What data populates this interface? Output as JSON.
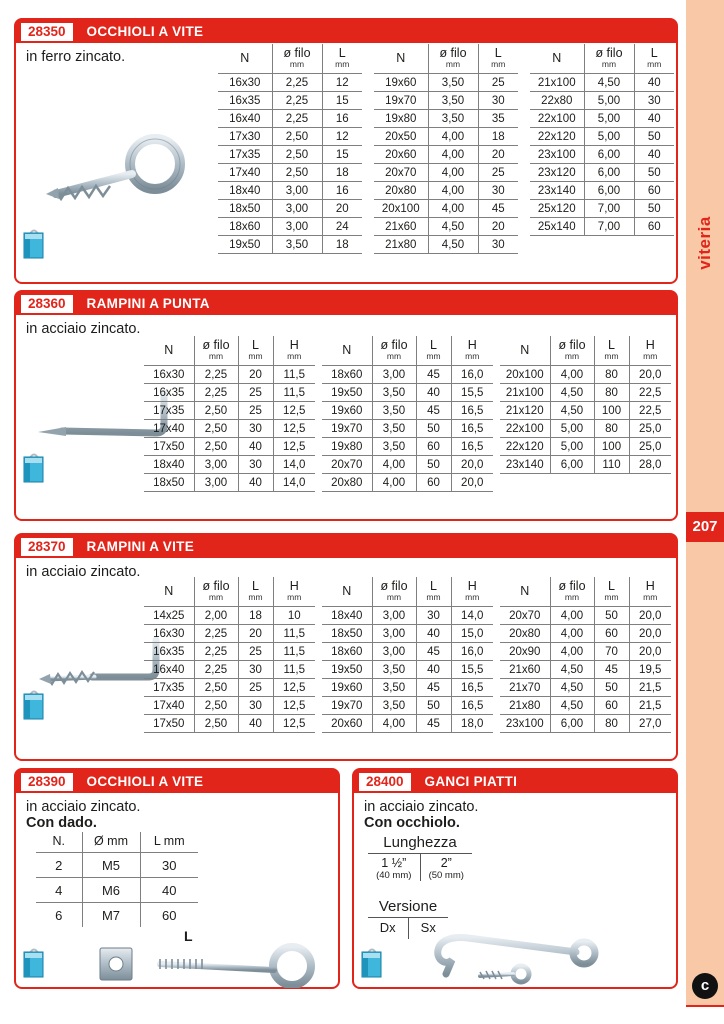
{
  "page": {
    "sidebar_label": "viteria",
    "page_number": "207",
    "logo_letter": "c"
  },
  "colors": {
    "accent_red": "#e1251b",
    "sidebar_peach": "#f9c9a7",
    "bag_teal": "#3fb6dc"
  },
  "sections": [
    {
      "code": "28350",
      "title": "OCCHIOLI A VITE",
      "subtitle": "in ferro zincato.",
      "tables": [
        {
          "headers": [
            {
              "main": "N",
              "sub": ""
            },
            {
              "main": "ø filo",
              "sub": "mm"
            },
            {
              "main": "L",
              "sub": "mm"
            }
          ],
          "rows": [
            [
              "16x30",
              "2,25",
              "12"
            ],
            [
              "16x35",
              "2,25",
              "15"
            ],
            [
              "16x40",
              "2,25",
              "16"
            ],
            [
              "17x30",
              "2,50",
              "12"
            ],
            [
              "17x35",
              "2,50",
              "15"
            ],
            [
              "17x40",
              "2,50",
              "18"
            ],
            [
              "18x40",
              "3,00",
              "16"
            ],
            [
              "18x50",
              "3,00",
              "20"
            ],
            [
              "18x60",
              "3,00",
              "24"
            ],
            [
              "19x50",
              "3,50",
              "18"
            ]
          ]
        },
        {
          "headers": [
            {
              "main": "N",
              "sub": ""
            },
            {
              "main": "ø filo",
              "sub": "mm"
            },
            {
              "main": "L",
              "sub": "mm"
            }
          ],
          "rows": [
            [
              "19x60",
              "3,50",
              "25"
            ],
            [
              "19x70",
              "3,50",
              "30"
            ],
            [
              "19x80",
              "3,50",
              "35"
            ],
            [
              "20x50",
              "4,00",
              "18"
            ],
            [
              "20x60",
              "4,00",
              "20"
            ],
            [
              "20x70",
              "4,00",
              "25"
            ],
            [
              "20x80",
              "4,00",
              "30"
            ],
            [
              "20x100",
              "4,00",
              "45"
            ],
            [
              "21x60",
              "4,50",
              "20"
            ],
            [
              "21x80",
              "4,50",
              "30"
            ]
          ]
        },
        {
          "headers": [
            {
              "main": "N",
              "sub": ""
            },
            {
              "main": "ø filo",
              "sub": "mm"
            },
            {
              "main": "L",
              "sub": "mm"
            }
          ],
          "rows": [
            [
              "21x100",
              "4,50",
              "40"
            ],
            [
              "22x80",
              "5,00",
              "30"
            ],
            [
              "22x100",
              "5,00",
              "40"
            ],
            [
              "22x120",
              "5,00",
              "50"
            ],
            [
              "23x100",
              "6,00",
              "40"
            ],
            [
              "23x120",
              "6,00",
              "50"
            ],
            [
              "23x140",
              "6,00",
              "60"
            ],
            [
              "25x120",
              "7,00",
              "50"
            ],
            [
              "25x140",
              "7,00",
              "60"
            ]
          ]
        }
      ]
    },
    {
      "code": "28360",
      "title": "RAMPINI A PUNTA",
      "subtitle": "in acciaio zincato.",
      "tables": [
        {
          "headers": [
            {
              "main": "N",
              "sub": ""
            },
            {
              "main": "ø filo",
              "sub": "mm"
            },
            {
              "main": "L",
              "sub": "mm"
            },
            {
              "main": "H",
              "sub": "mm"
            }
          ],
          "rows": [
            [
              "16x30",
              "2,25",
              "20",
              "11,5"
            ],
            [
              "16x35",
              "2,25",
              "25",
              "11,5"
            ],
            [
              "17x35",
              "2,50",
              "25",
              "12,5"
            ],
            [
              "17x40",
              "2,50",
              "30",
              "12,5"
            ],
            [
              "17x50",
              "2,50",
              "40",
              "12,5"
            ],
            [
              "18x40",
              "3,00",
              "30",
              "14,0"
            ],
            [
              "18x50",
              "3,00",
              "40",
              "14,0"
            ]
          ]
        },
        {
          "headers": [
            {
              "main": "N",
              "sub": ""
            },
            {
              "main": "ø filo",
              "sub": "mm"
            },
            {
              "main": "L",
              "sub": "mm"
            },
            {
              "main": "H",
              "sub": "mm"
            }
          ],
          "rows": [
            [
              "18x60",
              "3,00",
              "45",
              "16,0"
            ],
            [
              "19x50",
              "3,50",
              "40",
              "15,5"
            ],
            [
              "19x60",
              "3,50",
              "45",
              "16,5"
            ],
            [
              "19x70",
              "3,50",
              "50",
              "16,5"
            ],
            [
              "19x80",
              "3,50",
              "60",
              "16,5"
            ],
            [
              "20x70",
              "4,00",
              "50",
              "20,0"
            ],
            [
              "20x80",
              "4,00",
              "60",
              "20,0"
            ]
          ]
        },
        {
          "headers": [
            {
              "main": "N",
              "sub": ""
            },
            {
              "main": "ø filo",
              "sub": "mm"
            },
            {
              "main": "L",
              "sub": "mm"
            },
            {
              "main": "H",
              "sub": "mm"
            }
          ],
          "rows": [
            [
              "20x100",
              "4,00",
              "80",
              "20,0"
            ],
            [
              "21x100",
              "4,50",
              "80",
              "22,5"
            ],
            [
              "21x120",
              "4,50",
              "100",
              "22,5"
            ],
            [
              "22x100",
              "5,00",
              "80",
              "25,0"
            ],
            [
              "22x120",
              "5,00",
              "100",
              "25,0"
            ],
            [
              "23x140",
              "6,00",
              "110",
              "28,0"
            ]
          ]
        }
      ]
    },
    {
      "code": "28370",
      "title": "RAMPINI A VITE",
      "subtitle": "in acciaio zincato.",
      "tables": [
        {
          "headers": [
            {
              "main": "N",
              "sub": ""
            },
            {
              "main": "ø filo",
              "sub": "mm"
            },
            {
              "main": "L",
              "sub": "mm"
            },
            {
              "main": "H",
              "sub": "mm"
            }
          ],
          "rows": [
            [
              "14x25",
              "2,00",
              "18",
              "10"
            ],
            [
              "16x30",
              "2,25",
              "20",
              "11,5"
            ],
            [
              "16x35",
              "2,25",
              "25",
              "11,5"
            ],
            [
              "16x40",
              "2,25",
              "30",
              "11,5"
            ],
            [
              "17x35",
              "2,50",
              "25",
              "12,5"
            ],
            [
              "17x40",
              "2,50",
              "30",
              "12,5"
            ],
            [
              "17x50",
              "2,50",
              "40",
              "12,5"
            ]
          ]
        },
        {
          "headers": [
            {
              "main": "N",
              "sub": ""
            },
            {
              "main": "ø filo",
              "sub": "mm"
            },
            {
              "main": "L",
              "sub": "mm"
            },
            {
              "main": "H",
              "sub": "mm"
            }
          ],
          "rows": [
            [
              "18x40",
              "3,00",
              "30",
              "14,0"
            ],
            [
              "18x50",
              "3,00",
              "40",
              "15,0"
            ],
            [
              "18x60",
              "3,00",
              "45",
              "16,0"
            ],
            [
              "19x50",
              "3,50",
              "40",
              "15,5"
            ],
            [
              "19x60",
              "3,50",
              "45",
              "16,5"
            ],
            [
              "19x70",
              "3,50",
              "50",
              "16,5"
            ],
            [
              "20x60",
              "4,00",
              "45",
              "18,0"
            ]
          ]
        },
        {
          "headers": [
            {
              "main": "N",
              "sub": ""
            },
            {
              "main": "ø filo",
              "sub": "mm"
            },
            {
              "main": "L",
              "sub": "mm"
            },
            {
              "main": "H",
              "sub": "mm"
            }
          ],
          "rows": [
            [
              "20x70",
              "4,00",
              "50",
              "20,0"
            ],
            [
              "20x80",
              "4,00",
              "60",
              "20,0"
            ],
            [
              "20x90",
              "4,00",
              "70",
              "20,0"
            ],
            [
              "21x60",
              "4,50",
              "45",
              "19,5"
            ],
            [
              "21x70",
              "4,50",
              "50",
              "21,5"
            ],
            [
              "21x80",
              "4,50",
              "60",
              "21,5"
            ],
            [
              "23x100",
              "6,00",
              "80",
              "27,0"
            ]
          ]
        }
      ]
    },
    {
      "code": "28390",
      "title": "OCCHIOLI A VITE",
      "subtitle": "in acciaio zincato.",
      "note": "Con dado.",
      "diagram_label": "L",
      "tables": [
        {
          "headers": [
            {
              "main": "N.",
              "sub": ""
            },
            {
              "main": "Ø mm",
              "sub": ""
            },
            {
              "main": "L mm",
              "sub": ""
            }
          ],
          "rows": [
            [
              "2",
              "M5",
              "30"
            ],
            [
              "4",
              "M6",
              "40"
            ],
            [
              "6",
              "M7",
              "60"
            ]
          ]
        }
      ]
    },
    {
      "code": "28400",
      "title": "GANCI PIATTI",
      "subtitle": "in acciaio zincato.",
      "note": "Con occhiolo.",
      "length_block": {
        "title": "Lunghezza",
        "options": [
          {
            "inches": "1 ½”",
            "mm": "(40 mm)"
          },
          {
            "inches": "2”",
            "mm": "(50 mm)"
          }
        ]
      },
      "version_block": {
        "title": "Versione",
        "options": [
          "Dx",
          "Sx"
        ]
      }
    }
  ]
}
